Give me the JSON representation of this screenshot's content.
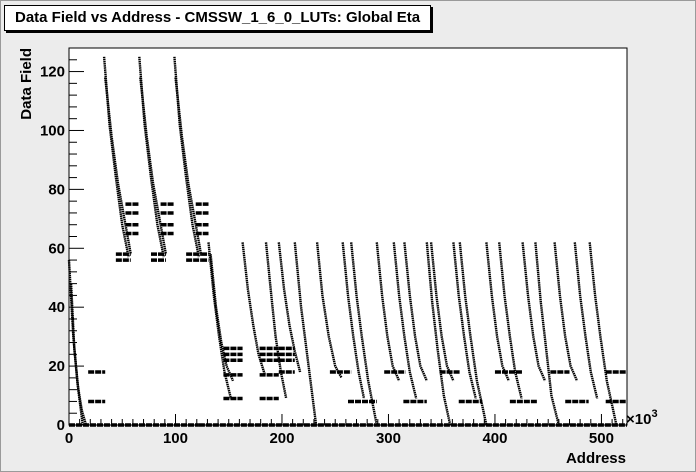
{
  "chart_data": {
    "type": "scatter",
    "title": "Data Field vs Address - CMSSW_1_6_0_LUTs: Global Eta",
    "xlabel": "Address",
    "ylabel": "Data Field",
    "x_multiplier_label": "×10",
    "x_multiplier_exp": "3",
    "xlim": [
      0,
      524
    ],
    "ylim": [
      0,
      128
    ],
    "x_ticks": [
      0,
      100,
      200,
      300,
      400,
      500
    ],
    "y_ticks": [
      0,
      20,
      40,
      60,
      80,
      100,
      120
    ],
    "x_tick_labels": [
      "0",
      "100",
      "200",
      "300",
      "400",
      "500"
    ],
    "y_tick_labels": [
      "0",
      "20",
      "40",
      "60",
      "80",
      "100",
      "120"
    ],
    "series": [
      {
        "curves": [
          {
            "x": [
              0,
              4,
              8,
              12,
              16
            ],
            "y": [
              56,
              30,
              14,
              5,
              0
            ]
          },
          {
            "x": [
              2,
              5,
              9,
              13
            ],
            "y": [
              48,
              26,
              11,
              0
            ]
          },
          {
            "x": [
              33,
              38,
              44,
              50,
              56
            ],
            "y": [
              125,
              102,
              84,
              68,
              57
            ]
          },
          {
            "x": [
              34,
              40,
              46,
              52,
              58
            ],
            "y": [
              118,
              98,
              82,
              70,
              58
            ]
          },
          {
            "x": [
              66,
              71,
              77,
              83,
              89
            ],
            "y": [
              125,
              102,
              84,
              68,
              57
            ]
          },
          {
            "x": [
              67,
              73,
              79,
              85,
              91
            ],
            "y": [
              118,
              98,
              82,
              70,
              58
            ]
          },
          {
            "x": [
              99,
              104,
              110,
              116,
              122
            ],
            "y": [
              125,
              102,
              84,
              68,
              57
            ]
          },
          {
            "x": [
              100,
              106,
              112,
              118,
              124
            ],
            "y": [
              118,
              98,
              82,
              70,
              58
            ]
          },
          {
            "x": [
              131,
              136,
              141,
              146,
              152
            ],
            "y": [
              62,
              44,
              30,
              18,
              9
            ]
          },
          {
            "x": [
              133,
              138,
              143,
              148,
              154
            ],
            "y": [
              58,
              40,
              28,
              20,
              15
            ]
          },
          {
            "x": [
              163,
              168,
              173,
              178,
              184
            ],
            "y": [
              62,
              46,
              34,
              24,
              17
            ]
          },
          {
            "x": [
              185,
              190,
              194,
              199,
              204
            ],
            "y": [
              62,
              44,
              30,
              18,
              9
            ]
          },
          {
            "x": [
              197,
              202,
              207,
              212,
              217
            ],
            "y": [
              62,
              46,
              34,
              25,
              18
            ]
          },
          {
            "x": [
              212,
              218,
              225,
              232
            ],
            "y": [
              62,
              40,
              20,
              0
            ]
          },
          {
            "x": [
              233,
              238,
              244,
              250,
              256
            ],
            "y": [
              62,
              44,
              30,
              20,
              16
            ]
          },
          {
            "x": [
              257,
              262,
              267,
              272,
              277
            ],
            "y": [
              62,
              44,
              30,
              18,
              9
            ]
          },
          {
            "x": [
              265,
              270,
              275,
              281,
              289
            ],
            "y": [
              62,
              44,
              30,
              15,
              0
            ]
          },
          {
            "x": [
              289,
              294,
              299,
              304,
              310
            ],
            "y": [
              62,
              44,
              30,
              20,
              15
            ]
          },
          {
            "x": [
              305,
              310,
              315,
              320,
              326
            ],
            "y": [
              62,
              44,
              30,
              18,
              9
            ]
          },
          {
            "x": [
              315,
              320,
              325,
              330,
              336
            ],
            "y": [
              62,
              44,
              30,
              20,
              15
            ]
          },
          {
            "x": [
              336,
              341,
              346,
              352,
              358
            ],
            "y": [
              62,
              42,
              26,
              10,
              0
            ]
          },
          {
            "x": [
              340,
              345,
              350,
              355,
              361
            ],
            "y": [
              62,
              44,
              30,
              20,
              15
            ]
          },
          {
            "x": [
              361,
              366,
              371,
              376,
              382
            ],
            "y": [
              62,
              44,
              30,
              18,
              9
            ]
          },
          {
            "x": [
              367,
              372,
              377,
              383,
              392
            ],
            "y": [
              62,
              44,
              30,
              15,
              0
            ]
          },
          {
            "x": [
              392,
              397,
              402,
              407,
              413
            ],
            "y": [
              62,
              44,
              30,
              20,
              15
            ]
          },
          {
            "x": [
              404,
              409,
              414,
              419,
              425
            ],
            "y": [
              62,
              44,
              30,
              18,
              9
            ]
          },
          {
            "x": [
              426,
              431,
              436,
              441,
              447
            ],
            "y": [
              62,
              44,
              30,
              20,
              15
            ]
          },
          {
            "x": [
              438,
              443,
              448,
              453,
              460
            ],
            "y": [
              62,
              42,
              26,
              10,
              0
            ]
          },
          {
            "x": [
              456,
              461,
              466,
              471,
              477
            ],
            "y": [
              62,
              44,
              30,
              20,
              15
            ]
          },
          {
            "x": [
              475,
              480,
              485,
              490,
              496
            ],
            "y": [
              62,
              44,
              30,
              18,
              9
            ]
          },
          {
            "x": [
              489,
              494,
              499,
              505,
              514
            ],
            "y": [
              62,
              44,
              30,
              15,
              0
            ]
          }
        ],
        "segments": [
          {
            "x": [
              18,
              34
            ],
            "y": 18
          },
          {
            "x": [
              18,
              34
            ],
            "y": 8
          },
          {
            "x": [
              0,
              122
            ],
            "y": 0
          },
          {
            "x": [
              44,
              58
            ],
            "y": 58
          },
          {
            "x": [
              44,
              58
            ],
            "y": 56
          },
          {
            "x": [
              53,
              66
            ],
            "y": 75
          },
          {
            "x": [
              53,
              66
            ],
            "y": 72
          },
          {
            "x": [
              53,
              66
            ],
            "y": 68
          },
          {
            "x": [
              53,
              66
            ],
            "y": 65
          },
          {
            "x": [
              77,
              91
            ],
            "y": 58
          },
          {
            "x": [
              77,
              91
            ],
            "y": 56
          },
          {
            "x": [
              86,
              99
            ],
            "y": 75
          },
          {
            "x": [
              86,
              99
            ],
            "y": 72
          },
          {
            "x": [
              86,
              99
            ],
            "y": 68
          },
          {
            "x": [
              86,
              99
            ],
            "y": 65
          },
          {
            "x": [
              110,
              124
            ],
            "y": 58
          },
          {
            "x": [
              110,
              124
            ],
            "y": 56
          },
          {
            "x": [
              119,
              131
            ],
            "y": 75
          },
          {
            "x": [
              119,
              131
            ],
            "y": 72
          },
          {
            "x": [
              119,
              131
            ],
            "y": 68
          },
          {
            "x": [
              119,
              131
            ],
            "y": 65
          },
          {
            "x": [
              124,
              131
            ],
            "y": 58
          },
          {
            "x": [
              124,
              131
            ],
            "y": 56
          },
          {
            "x": [
              145,
              163
            ],
            "y": 26
          },
          {
            "x": [
              145,
              163
            ],
            "y": 24
          },
          {
            "x": [
              145,
              163
            ],
            "y": 22
          },
          {
            "x": [
              145,
              163
            ],
            "y": 17
          },
          {
            "x": [
              145,
              163
            ],
            "y": 9
          },
          {
            "x": [
              179,
              197
            ],
            "y": 26
          },
          {
            "x": [
              179,
              197
            ],
            "y": 24
          },
          {
            "x": [
              179,
              197
            ],
            "y": 22
          },
          {
            "x": [
              179,
              197
            ],
            "y": 17
          },
          {
            "x": [
              179,
              197
            ],
            "y": 9
          },
          {
            "x": [
              197,
              212
            ],
            "y": 26
          },
          {
            "x": [
              197,
              212
            ],
            "y": 24
          },
          {
            "x": [
              197,
              212
            ],
            "y": 22
          },
          {
            "x": [
              197,
              212
            ],
            "y": 18
          },
          {
            "x": [
              245,
              265
            ],
            "y": 18
          },
          {
            "x": [
              262,
              289
            ],
            "y": 8
          },
          {
            "x": [
              296,
              316
            ],
            "y": 18
          },
          {
            "x": [
              314,
              336
            ],
            "y": 8
          },
          {
            "x": [
              348,
              367
            ],
            "y": 18
          },
          {
            "x": [
              366,
              388
            ],
            "y": 8
          },
          {
            "x": [
              400,
              426
            ],
            "y": 18
          },
          {
            "x": [
              414,
              440
            ],
            "y": 8
          },
          {
            "x": [
              452,
              470
            ],
            "y": 18
          },
          {
            "x": [
              466,
              488
            ],
            "y": 8
          },
          {
            "x": [
              504,
              524
            ],
            "y": 18
          },
          {
            "x": [
              504,
              524
            ],
            "y": 8
          },
          {
            "x": [
              122,
              524
            ],
            "y": 0
          }
        ]
      }
    ]
  }
}
